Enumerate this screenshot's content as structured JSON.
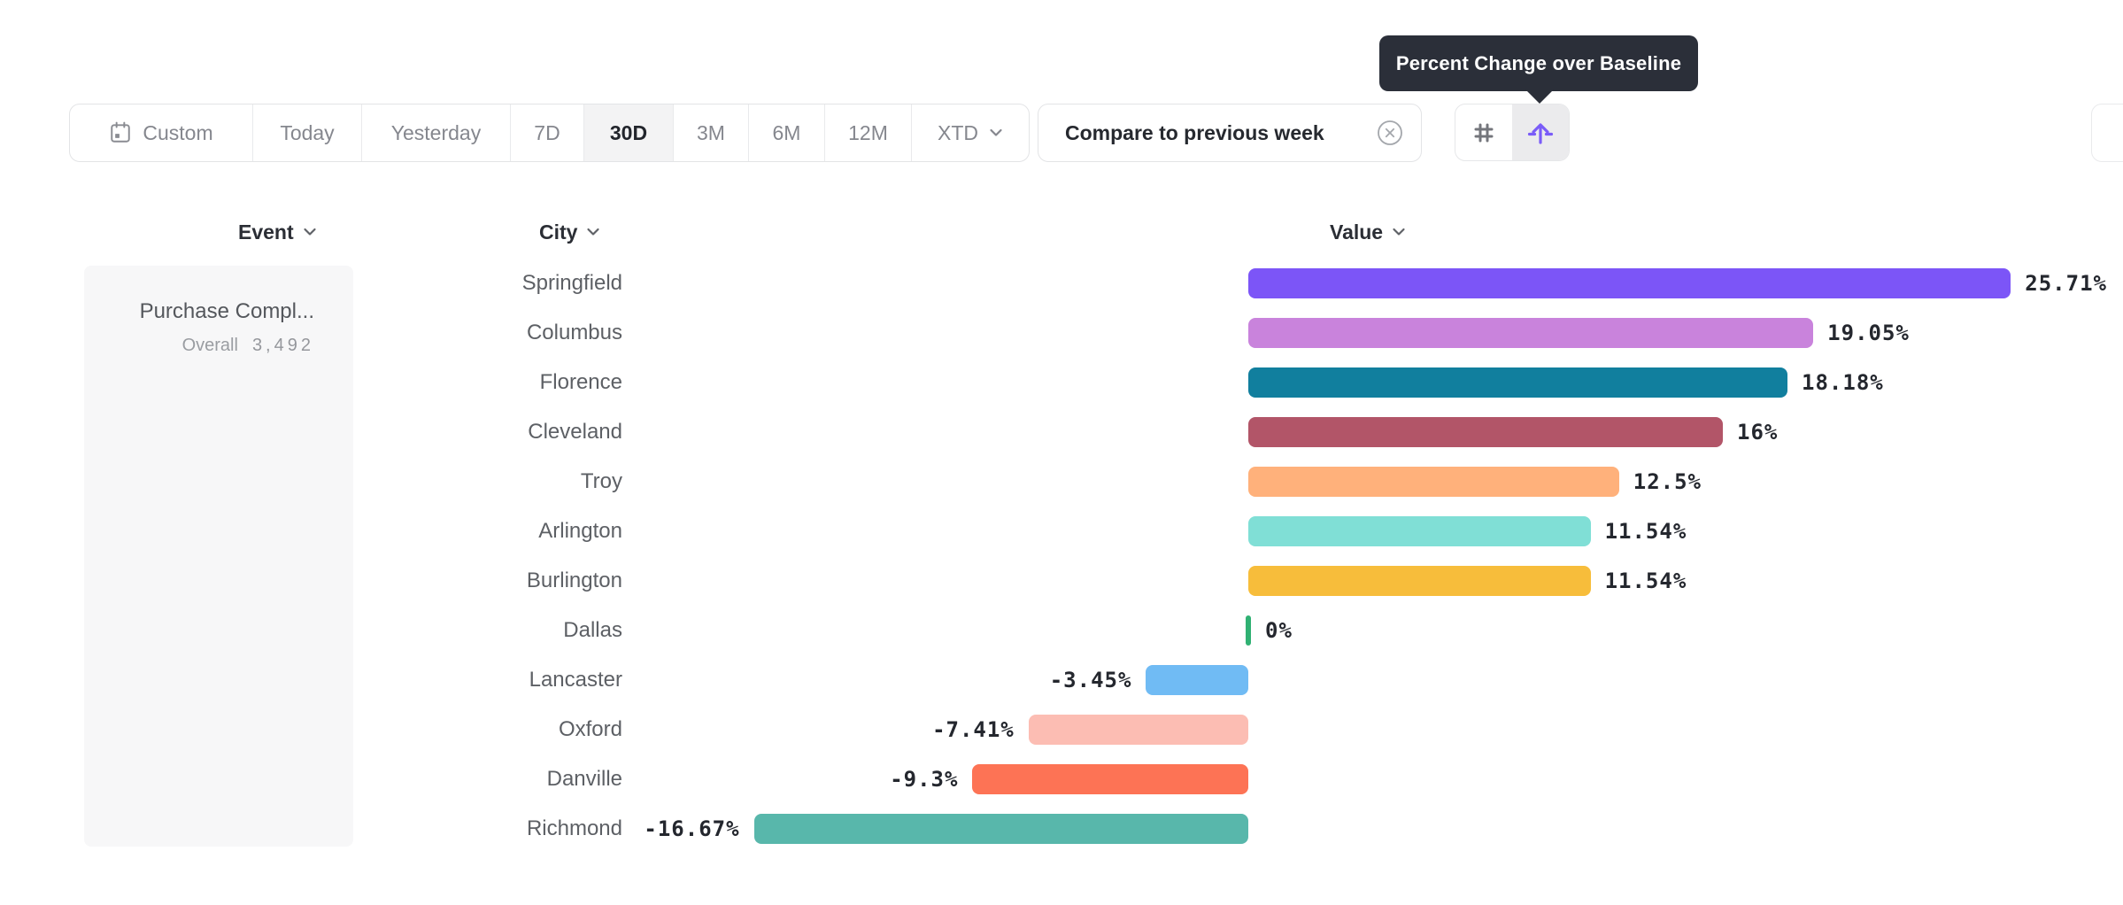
{
  "tooltip": {
    "text": "Percent Change over Baseline"
  },
  "toolbar": {
    "date_ranges": {
      "custom": "Custom",
      "today": "Today",
      "yesterday": "Yesterday",
      "d7": "7D",
      "d30": "30D",
      "m3": "3M",
      "m6": "6M",
      "m12": "12M",
      "xtd": "XTD",
      "selected": "30D"
    },
    "compare": {
      "label": "Compare to previous week",
      "close_icon": "circle-x-icon"
    },
    "display_toggle": {
      "options": [
        "number-grid-icon",
        "percent-change-icon"
      ],
      "selected": "percent-change-icon",
      "accent_color": "#7a5cf8"
    },
    "icons": {
      "calendar": "calendar-icon",
      "chevron": "chevron-down-icon"
    }
  },
  "columns": {
    "event": "Event",
    "city": "City",
    "value": "Value"
  },
  "event_panel": {
    "name": "Purchase Compl...",
    "overall_label": "Overall",
    "overall_value": "3,492"
  },
  "chart_data": {
    "type": "bar",
    "orientation": "horizontal",
    "title": "Percent Change over Baseline",
    "unit": "%",
    "grid": false,
    "legend": false,
    "xlim": [
      -16.67,
      25.71
    ],
    "categories": [
      "Springfield",
      "Columbus",
      "Florence",
      "Cleveland",
      "Troy",
      "Arlington",
      "Burlington",
      "Dallas",
      "Lancaster",
      "Oxford",
      "Danville",
      "Richmond"
    ],
    "values": [
      25.71,
      19.05,
      18.18,
      16,
      12.5,
      11.54,
      11.54,
      0,
      -3.45,
      -7.41,
      -9.3,
      -16.67
    ],
    "labels": [
      "25.71%",
      "19.05%",
      "18.18%",
      "16%",
      "12.5%",
      "11.54%",
      "11.54%",
      "0%",
      "-3.45%",
      "-7.41%",
      "-9.3%",
      "-16.67%"
    ],
    "colors": [
      "#7c55f7",
      "#c983dc",
      "#117f9e",
      "#b25568",
      "#ffb17b",
      "#80dfd6",
      "#f7bd3b",
      "#30b173",
      "#70bbf4",
      "#fcbdb3",
      "#fd7355",
      "#58b7ab"
    ]
  }
}
